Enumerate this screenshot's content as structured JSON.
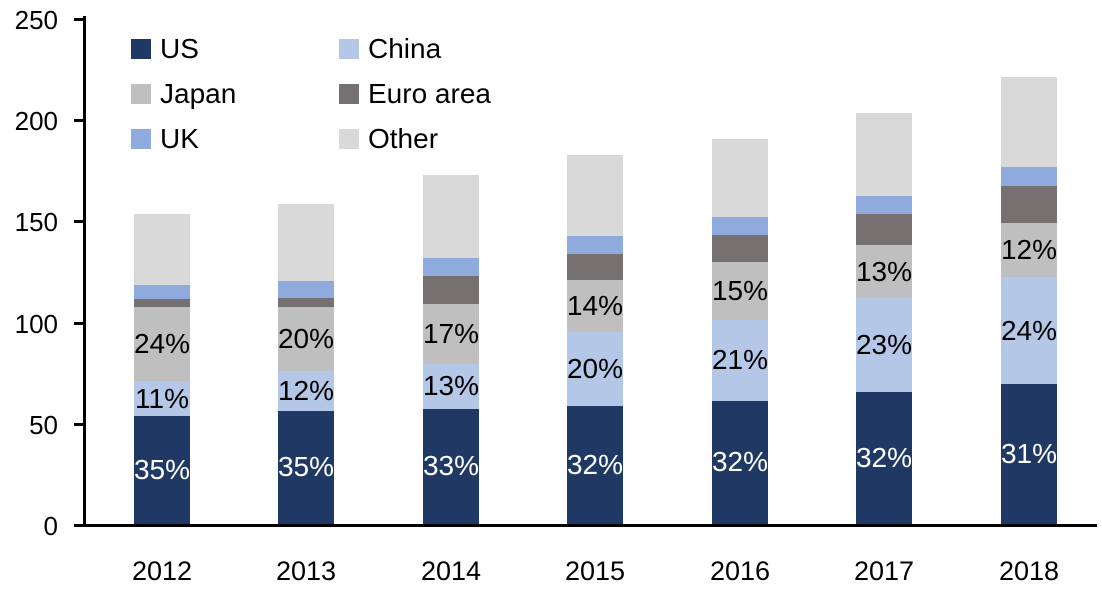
{
  "chart_data": {
    "type": "bar",
    "variant": "stacked",
    "title": "",
    "categories": [
      "2012",
      "2013",
      "2014",
      "2015",
      "2016",
      "2017",
      "2018"
    ],
    "series": [
      {
        "name": "US",
        "color": "#1F3864",
        "values": [
          53.5,
          56,
          57,
          58.5,
          61,
          65,
          69
        ],
        "labels": [
          "35%",
          "35%",
          "33%",
          "32%",
          "32%",
          "32%",
          "31%"
        ],
        "label_color": "#FFFFFF"
      },
      {
        "name": "China",
        "color": "#B4C7E7",
        "values": [
          17,
          19.5,
          22,
          36.5,
          40,
          46.5,
          53
        ],
        "labels": [
          "11%",
          "12%",
          "13%",
          "20%",
          "21%",
          "23%",
          "24%"
        ],
        "label_color": "#000000"
      },
      {
        "name": "Japan",
        "color": "#BFBFBF",
        "values": [
          36.5,
          31.5,
          29.5,
          25.5,
          28.5,
          26.5,
          26.5
        ],
        "labels": [
          "24%",
          "20%",
          "17%",
          "14%",
          "15%",
          "13%",
          "12%"
        ],
        "label_color": "#000000"
      },
      {
        "name": "Euro area",
        "color": "#767171",
        "values": [
          4,
          4.5,
          14,
          13,
          13.5,
          15,
          18.5
        ],
        "labels": null,
        "label_color": null
      },
      {
        "name": "UK",
        "color": "#8FAADC",
        "values": [
          7,
          8.5,
          9,
          9,
          8.5,
          9,
          9.5
        ],
        "labels": null,
        "label_color": null
      },
      {
        "name": "Other",
        "color": "#D9D9D9",
        "values": [
          35,
          38,
          41,
          40,
          38.5,
          41,
          44.5
        ],
        "labels": null,
        "label_color": null
      }
    ],
    "totals": [
      153,
      158,
      172.5,
      182.5,
      190,
      203,
      221
    ],
    "y_axis": {
      "min": 0,
      "max": 250,
      "tick_step": 50,
      "ticks": [
        "0",
        "50",
        "100",
        "150",
        "200",
        "250"
      ]
    },
    "x_axis": {
      "label": ""
    },
    "grid": "off",
    "legend": {
      "position": "top-left",
      "layout": "2-columns-row-major",
      "items": [
        "US",
        "China",
        "Japan",
        "Euro area",
        "UK",
        "Other"
      ]
    },
    "axis_color": "#000000"
  }
}
